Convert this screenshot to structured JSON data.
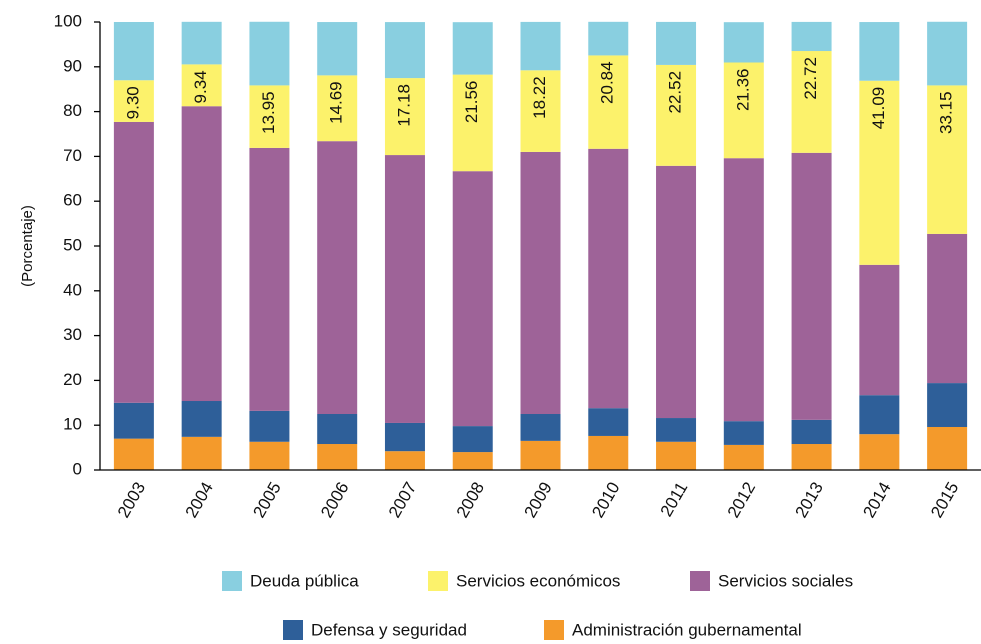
{
  "chart_data": {
    "type": "stacked_bar",
    "y_label": "(Porcentaje)",
    "categories": [
      "2003",
      "2004",
      "2005",
      "2006",
      "2007",
      "2008",
      "2009",
      "2010",
      "2011",
      "2012",
      "2013",
      "2014",
      "2015"
    ],
    "series": [
      {
        "name": "Deuda pública",
        "color": "#89cfe0",
        "values": [
          13.0,
          9.5,
          14.2,
          11.9,
          12.5,
          11.7,
          10.8,
          7.5,
          9.6,
          9.0,
          6.5,
          13.1,
          14.2
        ]
      },
      {
        "name": "Servicios económicos",
        "color": "#fcf26b",
        "values": [
          9.3,
          9.34,
          13.95,
          14.69,
          17.18,
          21.56,
          18.22,
          20.84,
          22.52,
          21.36,
          22.72,
          41.09,
          33.15
        ],
        "value_labels": [
          "9.30",
          "9.34",
          "13.95",
          "14.69",
          "17.18",
          "21.56",
          "18.22",
          "20.84",
          "22.52",
          "21.36",
          "22.72",
          "41.09",
          "33.15"
        ]
      },
      {
        "name": "Servicios sociales",
        "color": "#9e6398",
        "values": [
          62.7,
          65.8,
          58.7,
          60.9,
          59.8,
          56.9,
          58.5,
          57.9,
          56.3,
          58.7,
          59.6,
          29.1,
          33.3
        ]
      },
      {
        "name": "Defensa y seguridad",
        "color": "#2e5f99",
        "values": [
          8.0,
          8.0,
          6.9,
          6.7,
          6.3,
          5.8,
          6.0,
          6.2,
          5.3,
          5.3,
          5.4,
          8.7,
          9.8
        ]
      },
      {
        "name": "Administración gubernamental",
        "color": "#f49a2b",
        "values": [
          7.0,
          7.4,
          6.3,
          5.8,
          4.2,
          4.0,
          6.5,
          7.6,
          6.3,
          5.6,
          5.8,
          8.0,
          9.6
        ]
      }
    ],
    "ylim": [
      0,
      100
    ],
    "yticks": [
      0,
      10,
      20,
      30,
      40,
      50,
      60,
      70,
      80,
      90,
      100
    ]
  }
}
